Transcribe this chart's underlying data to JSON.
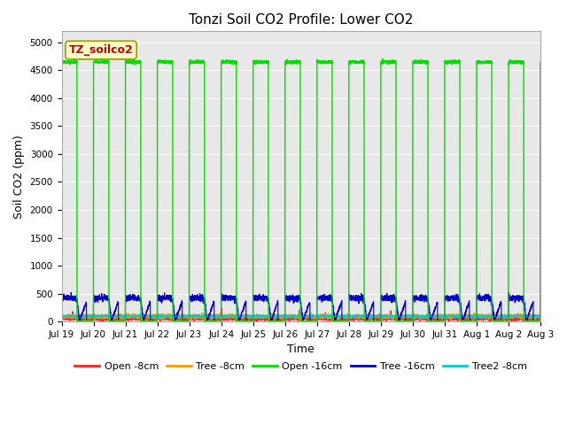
{
  "title": "Tonzi Soil CO2 Profile: Lower CO2",
  "xlabel": "Time",
  "ylabel": "Soil CO2 (ppm)",
  "ylim": [
    0,
    5200
  ],
  "yticks": [
    0,
    500,
    1000,
    1500,
    2000,
    2500,
    3000,
    3500,
    4000,
    4500,
    5000
  ],
  "fig_bg_color": "#ffffff",
  "plot_bg_color": "#e8e8e8",
  "grid_color": "#ffffff",
  "label_box_text": "TZ_soilco2",
  "label_box_facecolor": "#ffffcc",
  "label_box_edgecolor": "#999900",
  "label_box_text_color": "#cc0000",
  "series": {
    "open_8cm": {
      "label": "Open -8cm",
      "color": "#ff2222",
      "lw": 0.8
    },
    "tree_8cm": {
      "label": "Tree -8cm",
      "color": "#ff9900",
      "lw": 0.8
    },
    "open_16cm": {
      "label": "Open -16cm",
      "color": "#00dd00",
      "lw": 1.0
    },
    "tree_16cm": {
      "label": "Tree -16cm",
      "color": "#0000cc",
      "lw": 0.8
    },
    "tree2_8cm": {
      "label": "Tree2 -8cm",
      "color": "#00cccc",
      "lw": 0.8
    }
  },
  "xtick_labels": [
    "Jul 19",
    "Jul 20",
    "Jul 21",
    "Jul 22",
    "Jul 23",
    "Jul 24",
    "Jul 25",
    "Jul 26",
    "Jul 27",
    "Jul 28",
    "Jul 29",
    "Jul 30",
    "Jul 31",
    "Aug 1",
    "Aug 2",
    "Aug 3"
  ],
  "days": 15,
  "n_points": 4320,
  "green_high": 4650,
  "green_low": 5,
  "green_duty": 0.48,
  "blue_base": 420,
  "blue_low": 10,
  "blue_noise": 25,
  "red_base": 55,
  "red_noise": 20,
  "orange_base": 90,
  "orange_noise": 20,
  "cyan_base": 95,
  "cyan_noise": 10,
  "title_fontsize": 11,
  "tick_fontsize": 7.5,
  "ylabel_fontsize": 9,
  "xlabel_fontsize": 9
}
